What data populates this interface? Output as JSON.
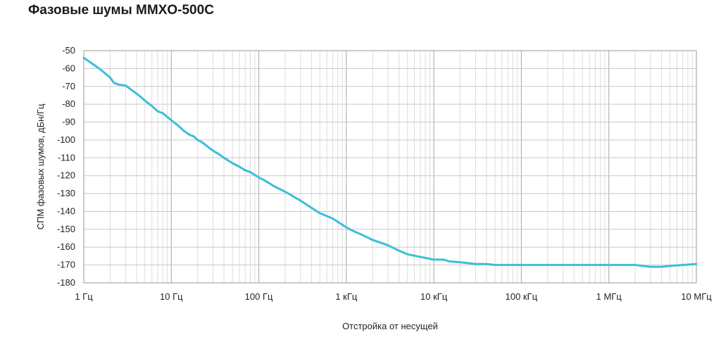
{
  "chart_data": {
    "type": "line",
    "title": "Фазовые шумы MMXO-500C",
    "xlabel": "Отстройка от несущей",
    "ylabel": "СПМ фазовых шумов, дБн/Гц",
    "x_scale": "log",
    "xlim": [
      1,
      10000000
    ],
    "ylim": [
      -180,
      -50
    ],
    "y_ticks": [
      -50,
      -60,
      -70,
      -80,
      -90,
      -100,
      -110,
      -120,
      -130,
      -140,
      -150,
      -160,
      -170,
      -180
    ],
    "x_ticks": [
      {
        "value": 1,
        "label": "1 Гц"
      },
      {
        "value": 10,
        "label": "10 Гц"
      },
      {
        "value": 100,
        "label": "100 Гц"
      },
      {
        "value": 1000,
        "label": "1 кГц"
      },
      {
        "value": 10000,
        "label": "10 кГц"
      },
      {
        "value": 100000,
        "label": "100 кГц"
      },
      {
        "value": 1000000,
        "label": "1 МГц"
      },
      {
        "value": 10000000,
        "label": "10 МГц"
      }
    ],
    "grid": true,
    "series_color": "#3bbfd6",
    "series": [
      {
        "x": [
          1,
          1.5,
          2,
          2.2,
          2.5,
          3,
          4,
          4.5,
          5,
          6,
          7,
          8,
          10,
          12,
          14,
          16,
          18,
          20,
          22,
          25,
          28,
          30,
          35,
          40,
          50,
          60,
          70,
          80,
          100,
          120,
          150,
          200,
          300,
          400,
          500,
          700,
          1000,
          1200,
          1500,
          2000,
          3000,
          4000,
          5000,
          7000,
          10000,
          13000,
          15000,
          20000,
          30000,
          40000,
          50000,
          100000,
          200000,
          500000,
          1000000,
          2000000,
          3000000,
          4000000,
          5000000,
          7000000,
          10000000
        ],
        "y": [
          -54,
          -60,
          -65,
          -68,
          -69,
          -69.5,
          -74,
          -76,
          -78,
          -81,
          -84,
          -85,
          -89,
          -92,
          -95,
          -97,
          -98,
          -100,
          -101,
          -103,
          -105,
          -106,
          -108,
          -110,
          -113,
          -115,
          -117,
          -118,
          -121,
          -123,
          -126,
          -129,
          -134,
          -138,
          -141,
          -144,
          -149,
          -151,
          -153,
          -156,
          -159,
          -162,
          -164,
          -165.5,
          -167,
          -167,
          -168,
          -168.5,
          -169.5,
          -169.5,
          -170,
          -170,
          -170,
          -170,
          -170,
          -170,
          -171,
          -171,
          -170.5,
          -170,
          -169.5
        ]
      }
    ]
  }
}
